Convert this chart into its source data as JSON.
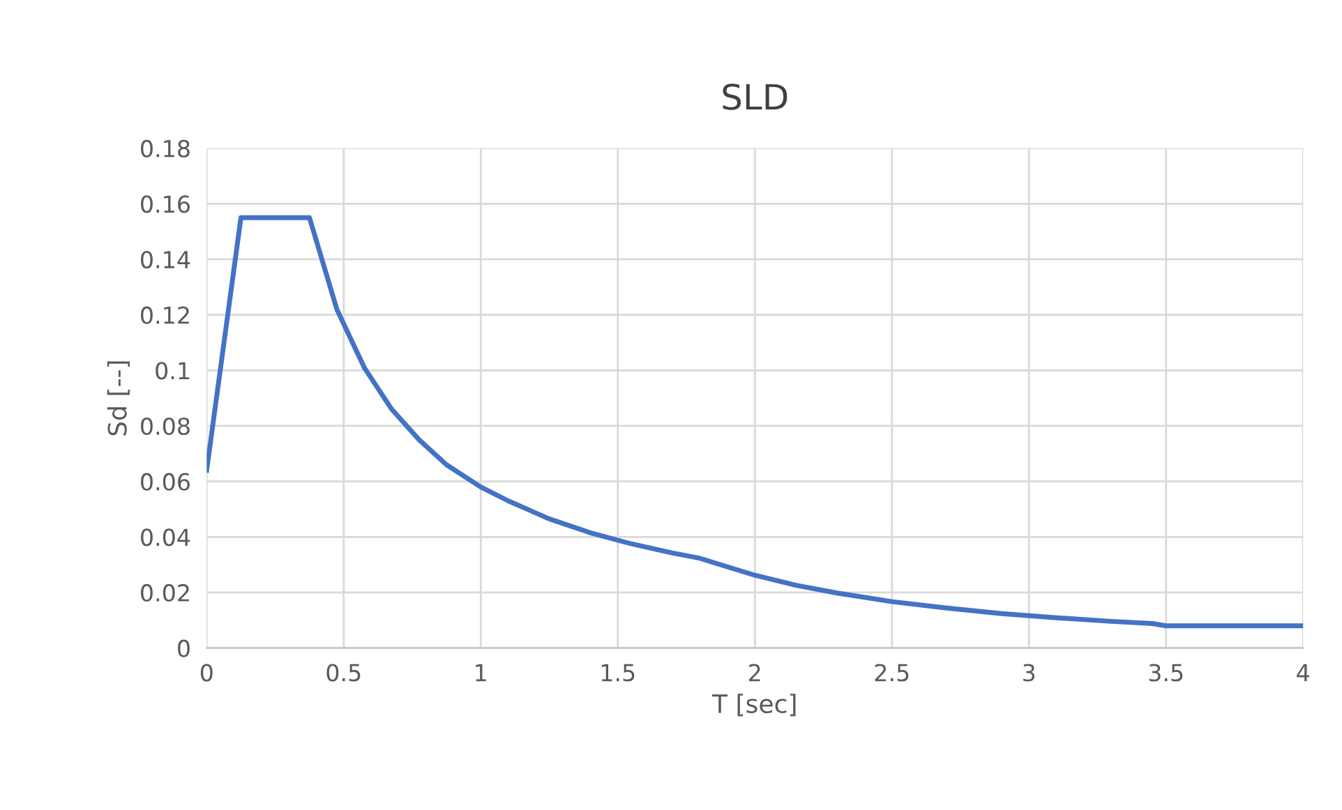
{
  "chart_data": {
    "type": "line",
    "title": "SLD",
    "xlabel": "T [sec]",
    "ylabel": "Sd [--]",
    "series": [
      {
        "color": "#4472c4",
        "x": [
          0,
          0.125,
          0.375,
          0.475,
          0.575,
          0.675,
          0.775,
          0.875,
          1.0,
          1.1,
          1.25,
          1.4,
          1.55,
          1.7,
          1.8,
          2.0,
          2.15,
          2.3,
          2.5,
          2.7,
          2.9,
          3.1,
          3.3,
          3.45,
          3.5,
          4.0
        ],
        "values": [
          0.064,
          0.155,
          0.155,
          0.122,
          0.101,
          0.086,
          0.075,
          0.066,
          0.058,
          0.053,
          0.0465,
          0.0415,
          0.0375,
          0.0342,
          0.0323,
          0.0262,
          0.0226,
          0.0198,
          0.0167,
          0.0144,
          0.0124,
          0.0109,
          0.0096,
          0.0088,
          0.008,
          0.008
        ]
      }
    ],
    "xlim": [
      0,
      4
    ],
    "xticks": [
      0,
      0.5,
      1,
      1.5,
      2,
      2.5,
      3,
      3.5,
      4
    ],
    "ylim": [
      0,
      0.18
    ],
    "yticks": [
      0,
      0.02,
      0.04,
      0.06,
      0.08,
      0.1,
      0.12,
      0.14,
      0.16,
      0.18
    ],
    "grid": true,
    "line_style": "solid",
    "marker": "none"
  }
}
